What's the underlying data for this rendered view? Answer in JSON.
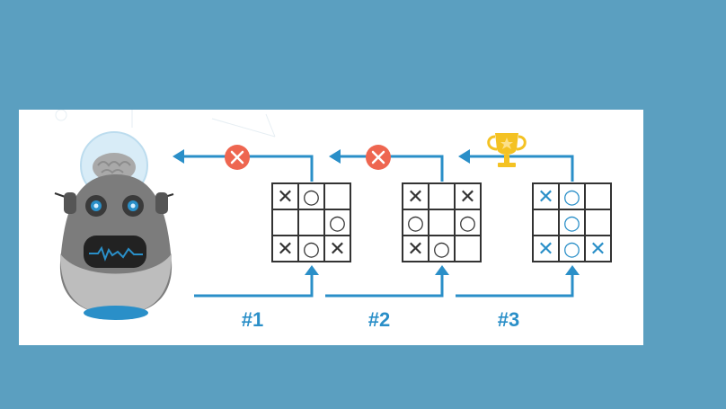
{
  "colors": {
    "background": "#5b9fc0",
    "arrow": "#2a8fc8",
    "grid": "#333333",
    "mark_default": "#333333",
    "mark_win": "#2a8fc8",
    "fail_badge": "#ee6650",
    "trophy": "#f4c223"
  },
  "attempts": [
    {
      "label": "#1",
      "outcome": "fail",
      "outcome_icon": "x-circle-icon",
      "board": [
        "X",
        "O",
        "",
        "",
        "",
        "O",
        "X",
        "O",
        "X"
      ]
    },
    {
      "label": "#2",
      "outcome": "fail",
      "outcome_icon": "x-circle-icon",
      "board": [
        "X",
        "",
        "X",
        "O",
        "",
        "O",
        "X",
        "O",
        ""
      ]
    },
    {
      "label": "#3",
      "outcome": "win",
      "outcome_icon": "trophy-icon",
      "board": [
        "X",
        "O",
        "",
        "",
        "O",
        "",
        "X",
        "O",
        "X"
      ]
    }
  ]
}
